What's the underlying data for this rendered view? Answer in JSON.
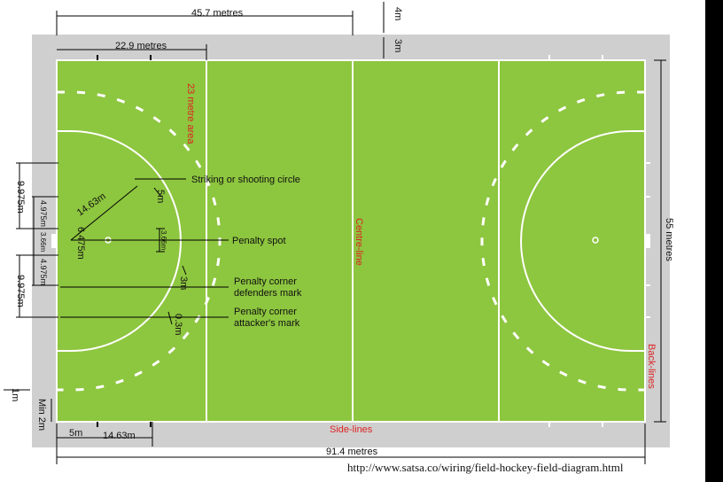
{
  "colors": {
    "pitch": "#8dc63f",
    "runoff": "#cfcfcf",
    "lines": "#ffffff",
    "highlight_text": "#dd2222"
  },
  "labels": {
    "half_length": "45.7 metres",
    "twentythree_m": "22.9 metres",
    "four_m": "4m",
    "three_m": "3m",
    "twentythree_area": "23 metre area",
    "centre_line": "Centre-line",
    "width": "55 metres",
    "back_lines": "Back-lines",
    "side_lines": "Side-lines",
    "full_length": "91.4 metres",
    "five_m_bottom": "5m",
    "fourteen_m_bottom": "14.63m",
    "min_2m": "Min 2m",
    "one_m": "1m",
    "d9975_top": "9.975m",
    "d9975_bottom": "9.975m",
    "d4975_top": "4.975m",
    "d4975_bottom": "4.975m",
    "goal_width": "3.66m",
    "circle_width": "3.66m",
    "d6475": "6.475m",
    "radius": "14.63m",
    "five_m_circle": "5m",
    "three_m_circle": "3m",
    "point_three_m": "0.3m",
    "striking_circle": "Striking or shooting circle",
    "penalty_spot": "Penalty spot",
    "defenders_mark_1": "Penalty corner",
    "defenders_mark_2": "defenders mark",
    "attackers_mark_1": "Penalty corner",
    "attackers_mark_2": "attacker's mark"
  },
  "source_url": "http://www.satsa.co/wiring/field-hockey-field-diagram.html"
}
